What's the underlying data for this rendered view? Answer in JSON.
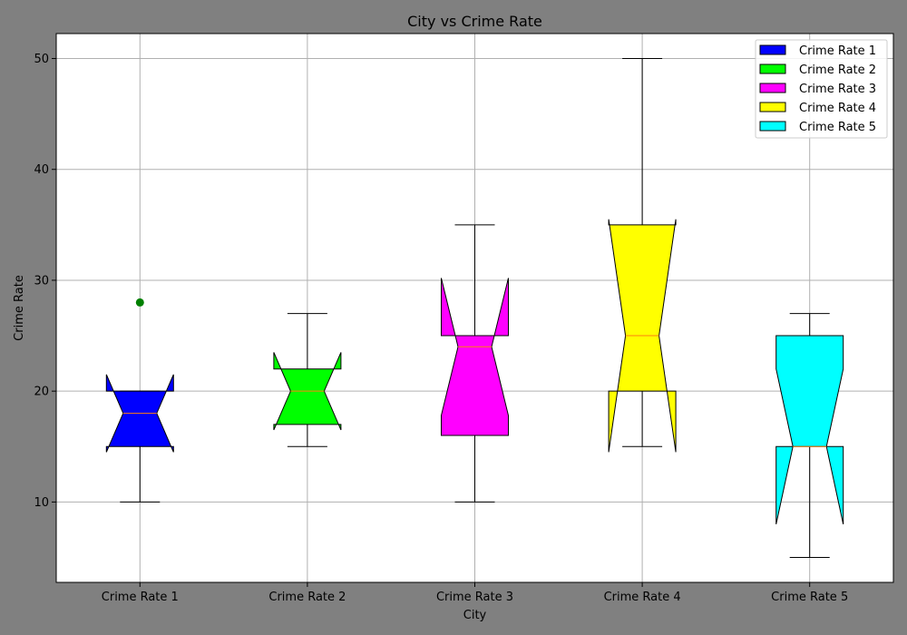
{
  "chart_data": {
    "type": "boxplot",
    "title": "City vs Crime Rate",
    "xlabel": "City",
    "ylabel": "Crime Rate",
    "ylim": [
      2.75,
      52.25
    ],
    "yticks": [
      10,
      20,
      30,
      40,
      50
    ],
    "categories": [
      "Crime Rate 1",
      "Crime Rate 2",
      "Crime Rate 3",
      "Crime Rate 4",
      "Crime Rate 5"
    ],
    "notched": true,
    "grid": true,
    "legend_position": "top-right",
    "boxes": [
      {
        "name": "Crime Rate 1",
        "whisker_low": 10,
        "q1": 15,
        "median": 18,
        "q3": 20,
        "whisker_high": 20,
        "notch_low": 14.5,
        "notch_high": 21.5,
        "fliers": [
          28
        ],
        "color": "#0000ff"
      },
      {
        "name": "Crime Rate 2",
        "whisker_low": 15,
        "q1": 17,
        "median": 20,
        "q3": 22,
        "whisker_high": 27,
        "notch_low": 16.5,
        "notch_high": 23.5,
        "fliers": [],
        "color": "#00ff00"
      },
      {
        "name": "Crime Rate 3",
        "whisker_low": 10,
        "q1": 16,
        "median": 24,
        "q3": 25,
        "whisker_high": 35,
        "notch_low": 17.8,
        "notch_high": 30.2,
        "fliers": [],
        "color": "#ff00ff"
      },
      {
        "name": "Crime Rate 4",
        "whisker_low": 15,
        "q1": 20,
        "median": 25,
        "q3": 35,
        "whisker_high": 50,
        "notch_low": 14.5,
        "notch_high": 35.5,
        "fliers": [],
        "color": "#ffff00"
      },
      {
        "name": "Crime Rate 5",
        "whisker_low": 5,
        "q1": 15,
        "median": 15,
        "q3": 25,
        "whisker_high": 27,
        "notch_low": 8,
        "notch_high": 22,
        "fliers": [],
        "color": "#00ffff"
      }
    ],
    "median_color": "#ff7f0e",
    "flier_color": "#008000",
    "legend": [
      "Crime Rate 1",
      "Crime Rate 2",
      "Crime Rate 3",
      "Crime Rate 4",
      "Crime Rate 5"
    ]
  }
}
